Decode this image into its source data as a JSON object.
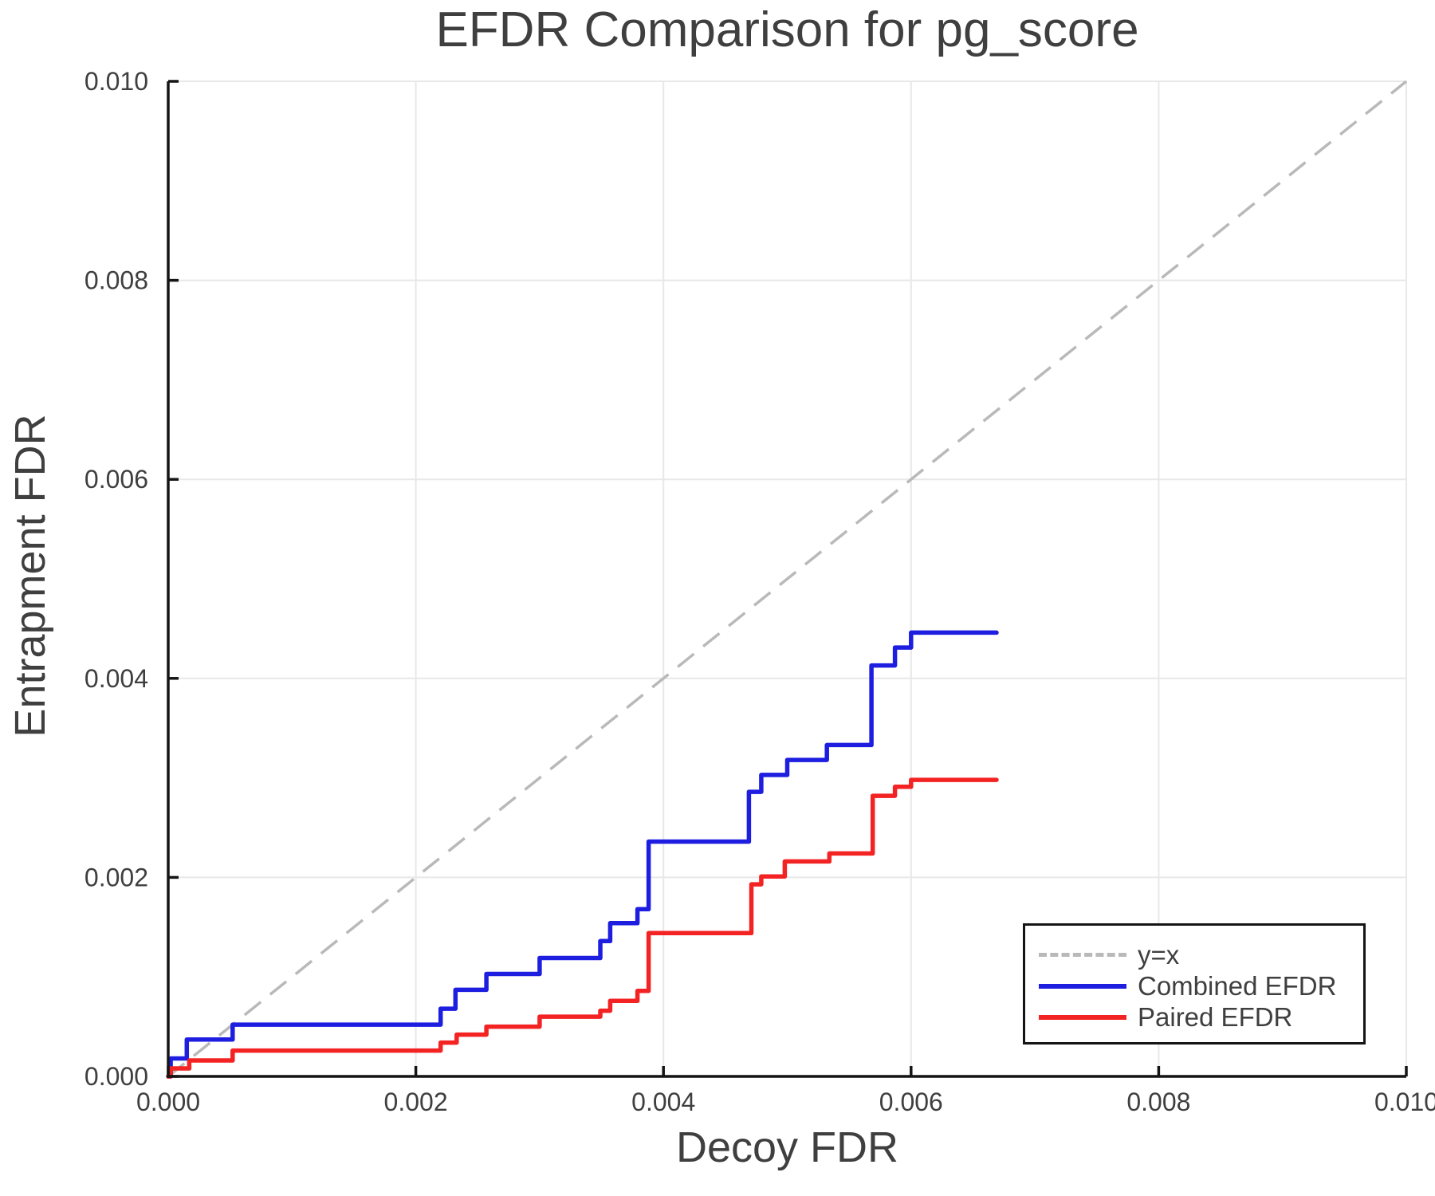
{
  "title": "EFDR Comparison for pg_score",
  "axes": {
    "x_label": "Decoy FDR",
    "y_label": "Entrapment FDR",
    "x_ticks": [
      0.0,
      0.002,
      0.004,
      0.006,
      0.008,
      0.01
    ],
    "x_tick_labels": [
      "0.000",
      "0.002",
      "0.004",
      "0.006",
      "0.008",
      "0.010"
    ],
    "y_ticks": [
      0.0,
      0.002,
      0.004,
      0.006,
      0.008,
      0.01
    ],
    "y_tick_labels": [
      "0.000",
      "0.002",
      "0.004",
      "0.006",
      "0.008",
      "0.010"
    ],
    "xlim": [
      0,
      0.01
    ],
    "ylim": [
      0,
      0.01
    ],
    "grid": true
  },
  "legend": {
    "position": "lower right",
    "items": [
      {
        "label": "y=x",
        "color": "#b9b9b9",
        "style": "dashed"
      },
      {
        "label": "Combined EFDR",
        "color": "#1e1ee0",
        "style": "solid"
      },
      {
        "label": "Paired EFDR",
        "color": "#f32323",
        "style": "solid"
      }
    ]
  },
  "colors": {
    "grid": "#e8e8e8",
    "spine": "#141414",
    "text": "#3f3f3f",
    "reference": "#b9b9b9",
    "combined": "#1e1ee0",
    "paired": "#f32323",
    "background": "#ffffff"
  },
  "chart_data": {
    "type": "line",
    "title": "EFDR Comparison for pg_score",
    "xlabel": "Decoy FDR",
    "ylabel": "Entrapment FDR",
    "xlim": [
      0,
      0.01
    ],
    "ylim": [
      0,
      0.01
    ],
    "grid": true,
    "legend_position": "lower right",
    "reference_line": {
      "name": "y=x",
      "from": [
        0,
        0
      ],
      "to": [
        0.01,
        0.01
      ],
      "style": "dashed",
      "color": "#b9b9b9"
    },
    "series": [
      {
        "name": "Combined EFDR",
        "color": "#1e1ee0",
        "step": "post",
        "x": [
          0.0,
          2e-05,
          0.00015,
          0.00052,
          0.0022,
          0.00232,
          0.00257,
          0.003,
          0.00349,
          0.00357,
          0.00379,
          0.00388,
          0.00469,
          0.00479,
          0.005,
          0.00532,
          0.00568,
          0.00587,
          0.006
        ],
        "y": [
          0.0,
          0.00018,
          0.00037,
          0.00052,
          0.00068,
          0.00087,
          0.00103,
          0.00119,
          0.00136,
          0.00154,
          0.00168,
          0.00236,
          0.00286,
          0.00303,
          0.00318,
          0.00333,
          0.00413,
          0.00431,
          0.00446
        ],
        "x_end": 0.00669
      },
      {
        "name": "Paired EFDR",
        "color": "#f32323",
        "step": "post",
        "x": [
          0.0,
          2e-05,
          0.00017,
          0.00052,
          0.0022,
          0.00233,
          0.00257,
          0.003,
          0.00349,
          0.00357,
          0.00379,
          0.00388,
          0.00471,
          0.00479,
          0.00498,
          0.00534,
          0.00569,
          0.00587,
          0.006
        ],
        "y": [
          0.0,
          8e-05,
          0.00016,
          0.00026,
          0.00034,
          0.00042,
          0.0005,
          0.0006,
          0.00066,
          0.00076,
          0.00086,
          0.00144,
          0.00193,
          0.00201,
          0.00216,
          0.00224,
          0.00282,
          0.00291,
          0.00298
        ],
        "x_end": 0.00669
      }
    ]
  }
}
